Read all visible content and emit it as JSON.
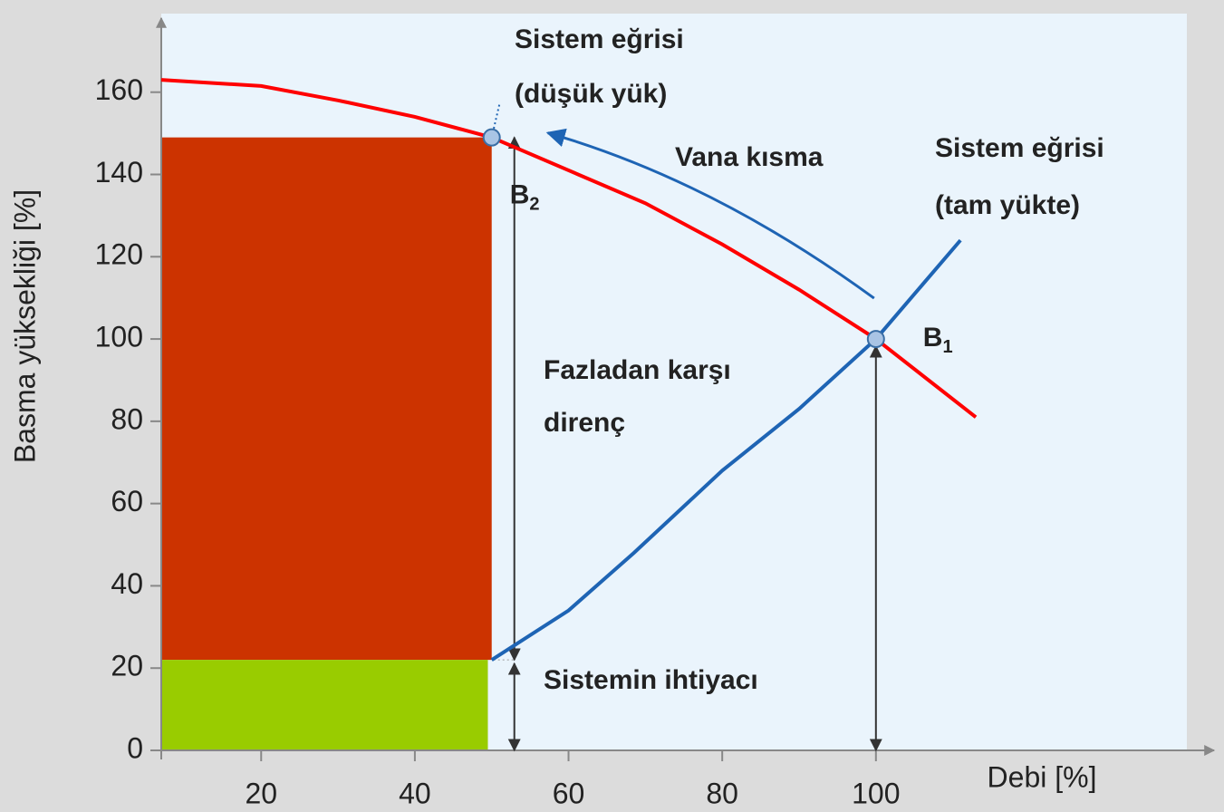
{
  "chart_data": {
    "type": "line",
    "xlabel": "Debi [%]",
    "ylabel": "Basma yüksekliği [%]",
    "xlim": [
      7,
      144
    ],
    "ylim": [
      0,
      178
    ],
    "xticks": [
      20,
      40,
      60,
      80,
      100
    ],
    "yticks": [
      0,
      20,
      40,
      60,
      80,
      100,
      120,
      140,
      160
    ],
    "grid": false,
    "series": [
      {
        "color": "#ff0000",
        "style": "solid",
        "x": [
          7,
          20,
          30,
          40,
          50,
          60,
          70,
          80,
          90,
          100,
          113
        ],
        "values": [
          163,
          161.5,
          158,
          154,
          149,
          141,
          133,
          123,
          112,
          100,
          81
        ]
      },
      {
        "color": "#1e64b4",
        "style": "solid",
        "x": [
          50,
          60,
          68.5,
          80,
          90,
          100,
          111
        ],
        "values": [
          22,
          34,
          48,
          68,
          83,
          100,
          124
        ]
      },
      {
        "color": "#1e64b4",
        "style": "dotted",
        "x": [
          50,
          51
        ],
        "values": [
          149,
          157
        ]
      }
    ],
    "regions": [
      {
        "color": "#cc3300",
        "x0": 7,
        "x1": 50,
        "y0": 22,
        "y1": 149
      },
      {
        "color": "#99cc00",
        "x0": 7,
        "x1": 49.5,
        "y0": 0,
        "y1": 22
      }
    ],
    "points": [
      {
        "label": "B",
        "subscript": "1",
        "x": 100,
        "y": 100
      },
      {
        "label": "B",
        "subscript": "2",
        "x": 50,
        "y": 149
      }
    ],
    "annotations": [
      "Sistem eğrisi",
      "(düşük yük)",
      "Vana kısma",
      "Sistem eğrisi",
      "(tam yükte)",
      "Fazladan karşı",
      "direnç",
      "Sistemin ihtiyacı"
    ]
  }
}
